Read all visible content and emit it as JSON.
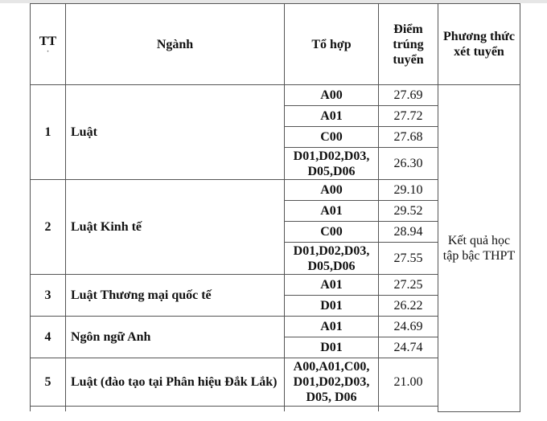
{
  "headers": {
    "tt": "TT",
    "nganh": "Ngành",
    "to_hop": "Tổ hợp",
    "diem": "Điểm trúng tuyển",
    "phuong_thuc": "Phương thức xét tuyển"
  },
  "method": "Kết quả học tập bậc THPT",
  "rows": [
    {
      "tt": "1",
      "nganh": "Luật",
      "items": [
        {
          "to_hop": "A00",
          "diem": "27.69"
        },
        {
          "to_hop": "A01",
          "diem": "27.72"
        },
        {
          "to_hop": "C00",
          "diem": "27.68"
        },
        {
          "to_hop": "D01,D02,D03, D05,D06",
          "diem": "26.30"
        }
      ]
    },
    {
      "tt": "2",
      "nganh": "Luật Kinh tế",
      "items": [
        {
          "to_hop": "A00",
          "diem": "29.10"
        },
        {
          "to_hop": "A01",
          "diem": "29.52"
        },
        {
          "to_hop": "C00",
          "diem": "28.94"
        },
        {
          "to_hop": "D01,D02,D03, D05,D06",
          "diem": "27.55"
        }
      ]
    },
    {
      "tt": "3",
      "nganh": "Luật Thương mại quốc tế",
      "items": [
        {
          "to_hop": "A01",
          "diem": "27.25"
        },
        {
          "to_hop": "D01",
          "diem": "26.22"
        }
      ]
    },
    {
      "tt": "4",
      "nganh": "Ngôn ngữ Anh",
      "items": [
        {
          "to_hop": "A01",
          "diem": "24.69"
        },
        {
          "to_hop": "D01",
          "diem": "24.74"
        }
      ]
    },
    {
      "tt": "5",
      "nganh": "Luật (đào tạo tại Phân hiệu Đắk Lắk)",
      "items": [
        {
          "to_hop": "A00,A01,C00, D01,D02,D03, D05, D06",
          "diem": "21.00"
        }
      ]
    }
  ]
}
